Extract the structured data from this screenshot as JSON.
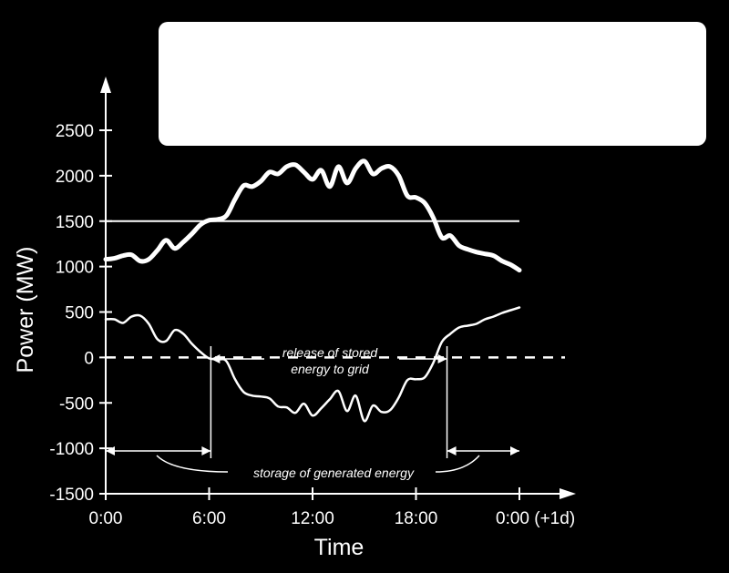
{
  "chart_data": {
    "type": "line",
    "xlabel": "Time",
    "ylabel": "Power (MW)",
    "xlim": [
      0,
      24
    ],
    "ylim": [
      -1500,
      2500
    ],
    "x_ticks": [
      {
        "value": 0,
        "label": "0:00"
      },
      {
        "value": 6,
        "label": "6:00"
      },
      {
        "value": 12,
        "label": "12:00"
      },
      {
        "value": 18,
        "label": "18:00"
      },
      {
        "value": 24,
        "label": "0:00 (+1d)"
      }
    ],
    "y_ticks": [
      {
        "value": 2500,
        "label": "2500"
      },
      {
        "value": 2000,
        "label": "2000"
      },
      {
        "value": 1500,
        "label": "1500"
      },
      {
        "value": 1000,
        "label": "1000"
      },
      {
        "value": 500,
        "label": "500"
      },
      {
        "value": 0,
        "label": "0"
      },
      {
        "value": -500,
        "label": "-500"
      },
      {
        "value": -1000,
        "label": "-1000"
      },
      {
        "value": -1500,
        "label": "-1500"
      }
    ],
    "series": [
      {
        "style": "thick",
        "x": [
          0,
          0.5,
          1,
          1.5,
          2,
          2.5,
          3,
          3.5,
          4,
          4.5,
          5,
          5.5,
          6,
          6.5,
          7,
          7.5,
          8,
          8.5,
          9,
          9.5,
          10,
          10.5,
          11,
          11.5,
          12,
          12.5,
          13,
          13.5,
          14,
          14.5,
          15,
          15.5,
          16,
          16.5,
          17,
          17.5,
          18,
          18.5,
          19,
          19.5,
          20,
          20.5,
          21,
          21.5,
          22,
          22.5,
          23,
          23.5,
          24
        ],
        "values": [
          1080,
          1090,
          1120,
          1130,
          1060,
          1080,
          1180,
          1290,
          1200,
          1270,
          1360,
          1460,
          1510,
          1520,
          1560,
          1740,
          1890,
          1880,
          1940,
          2040,
          2020,
          2100,
          2120,
          2040,
          1960,
          2060,
          1880,
          2100,
          1920,
          2080,
          2160,
          2020,
          2080,
          2100,
          2000,
          1780,
          1760,
          1700,
          1540,
          1320,
          1340,
          1230,
          1190,
          1160,
          1140,
          1120,
          1060,
          1020,
          960
        ]
      },
      {
        "style": "thin",
        "x": [
          0,
          0.5,
          1,
          1.5,
          2,
          2.5,
          3,
          3.5,
          4,
          4.5,
          5,
          5.5,
          6,
          6.5,
          7,
          7.5,
          8,
          8.5,
          9,
          9.5,
          10,
          10.5,
          11,
          11.5,
          12,
          12.5,
          13,
          13.5,
          14,
          14.5,
          15,
          15.5,
          16,
          16.5,
          17,
          17.5,
          18,
          18.5,
          19,
          19.5,
          20,
          20.5,
          21,
          21.5,
          22,
          22.5,
          23,
          23.5,
          24
        ],
        "values": [
          420,
          420,
          380,
          450,
          460,
          370,
          200,
          180,
          300,
          260,
          150,
          60,
          -10,
          -20,
          -40,
          -240,
          -380,
          -420,
          -430,
          -450,
          -540,
          -550,
          -610,
          -510,
          -640,
          -560,
          -460,
          -370,
          -590,
          -420,
          -700,
          -530,
          -600,
          -580,
          -440,
          -250,
          -240,
          -220,
          -60,
          170,
          260,
          330,
          350,
          370,
          420,
          450,
          490,
          520,
          550
        ]
      }
    ],
    "reference_lines": [
      {
        "y": 1500,
        "style": "solid"
      },
      {
        "y": 0,
        "style": "dashed"
      }
    ],
    "annotations": [
      {
        "text": "release of stored",
        "x_range": [
          6.1,
          19.8
        ]
      },
      {
        "text": "energy to grid"
      },
      {
        "text": "storage of generated energy",
        "x_ranges": [
          [
            0,
            6.1
          ],
          [
            19.8,
            24
          ]
        ]
      }
    ],
    "grid": false
  }
}
